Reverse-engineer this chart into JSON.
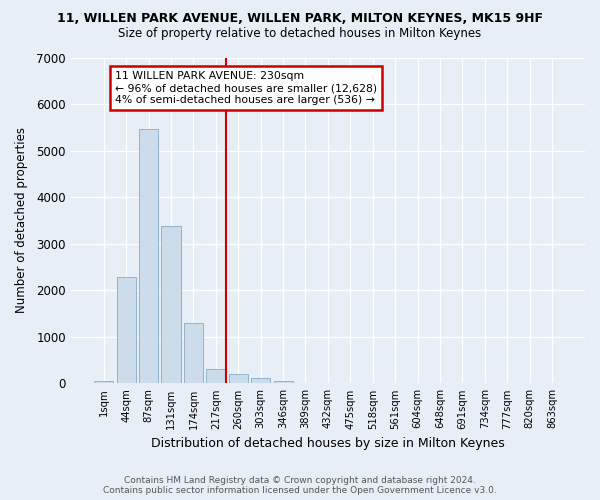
{
  "title1": "11, WILLEN PARK AVENUE, WILLEN PARK, MILTON KEYNES, MK15 9HF",
  "title2": "Size of property relative to detached houses in Milton Keynes",
  "xlabel": "Distribution of detached houses by size in Milton Keynes",
  "ylabel": "Number of detached properties",
  "footer1": "Contains HM Land Registry data © Crown copyright and database right 2024.",
  "footer2": "Contains public sector information licensed under the Open Government Licence v3.0.",
  "bar_labels": [
    "1sqm",
    "44sqm",
    "87sqm",
    "131sqm",
    "174sqm",
    "217sqm",
    "260sqm",
    "303sqm",
    "346sqm",
    "389sqm",
    "432sqm",
    "475sqm",
    "518sqm",
    "561sqm",
    "604sqm",
    "648sqm",
    "691sqm",
    "734sqm",
    "777sqm",
    "820sqm",
    "863sqm"
  ],
  "bar_values": [
    50,
    2280,
    5460,
    3390,
    1290,
    310,
    200,
    110,
    50,
    10,
    0,
    0,
    0,
    0,
    0,
    0,
    0,
    0,
    0,
    0,
    0
  ],
  "bar_color": "#cddceb",
  "bar_edge_color": "#8fb4d0",
  "property_line_x": 5.45,
  "annotation_title": "11 WILLEN PARK AVENUE: 230sqm",
  "annotation_line1": "← 96% of detached houses are smaller (12,628)",
  "annotation_line2": "4% of semi-detached houses are larger (536) →",
  "annotation_box_color": "#ffffff",
  "annotation_border_color": "#cc0000",
  "vline_color": "#cc0000",
  "ylim": [
    0,
    7000
  ],
  "yticks": [
    0,
    1000,
    2000,
    3000,
    4000,
    5000,
    6000,
    7000
  ],
  "background_color": "#e8eef5",
  "grid_color": "#ffffff"
}
